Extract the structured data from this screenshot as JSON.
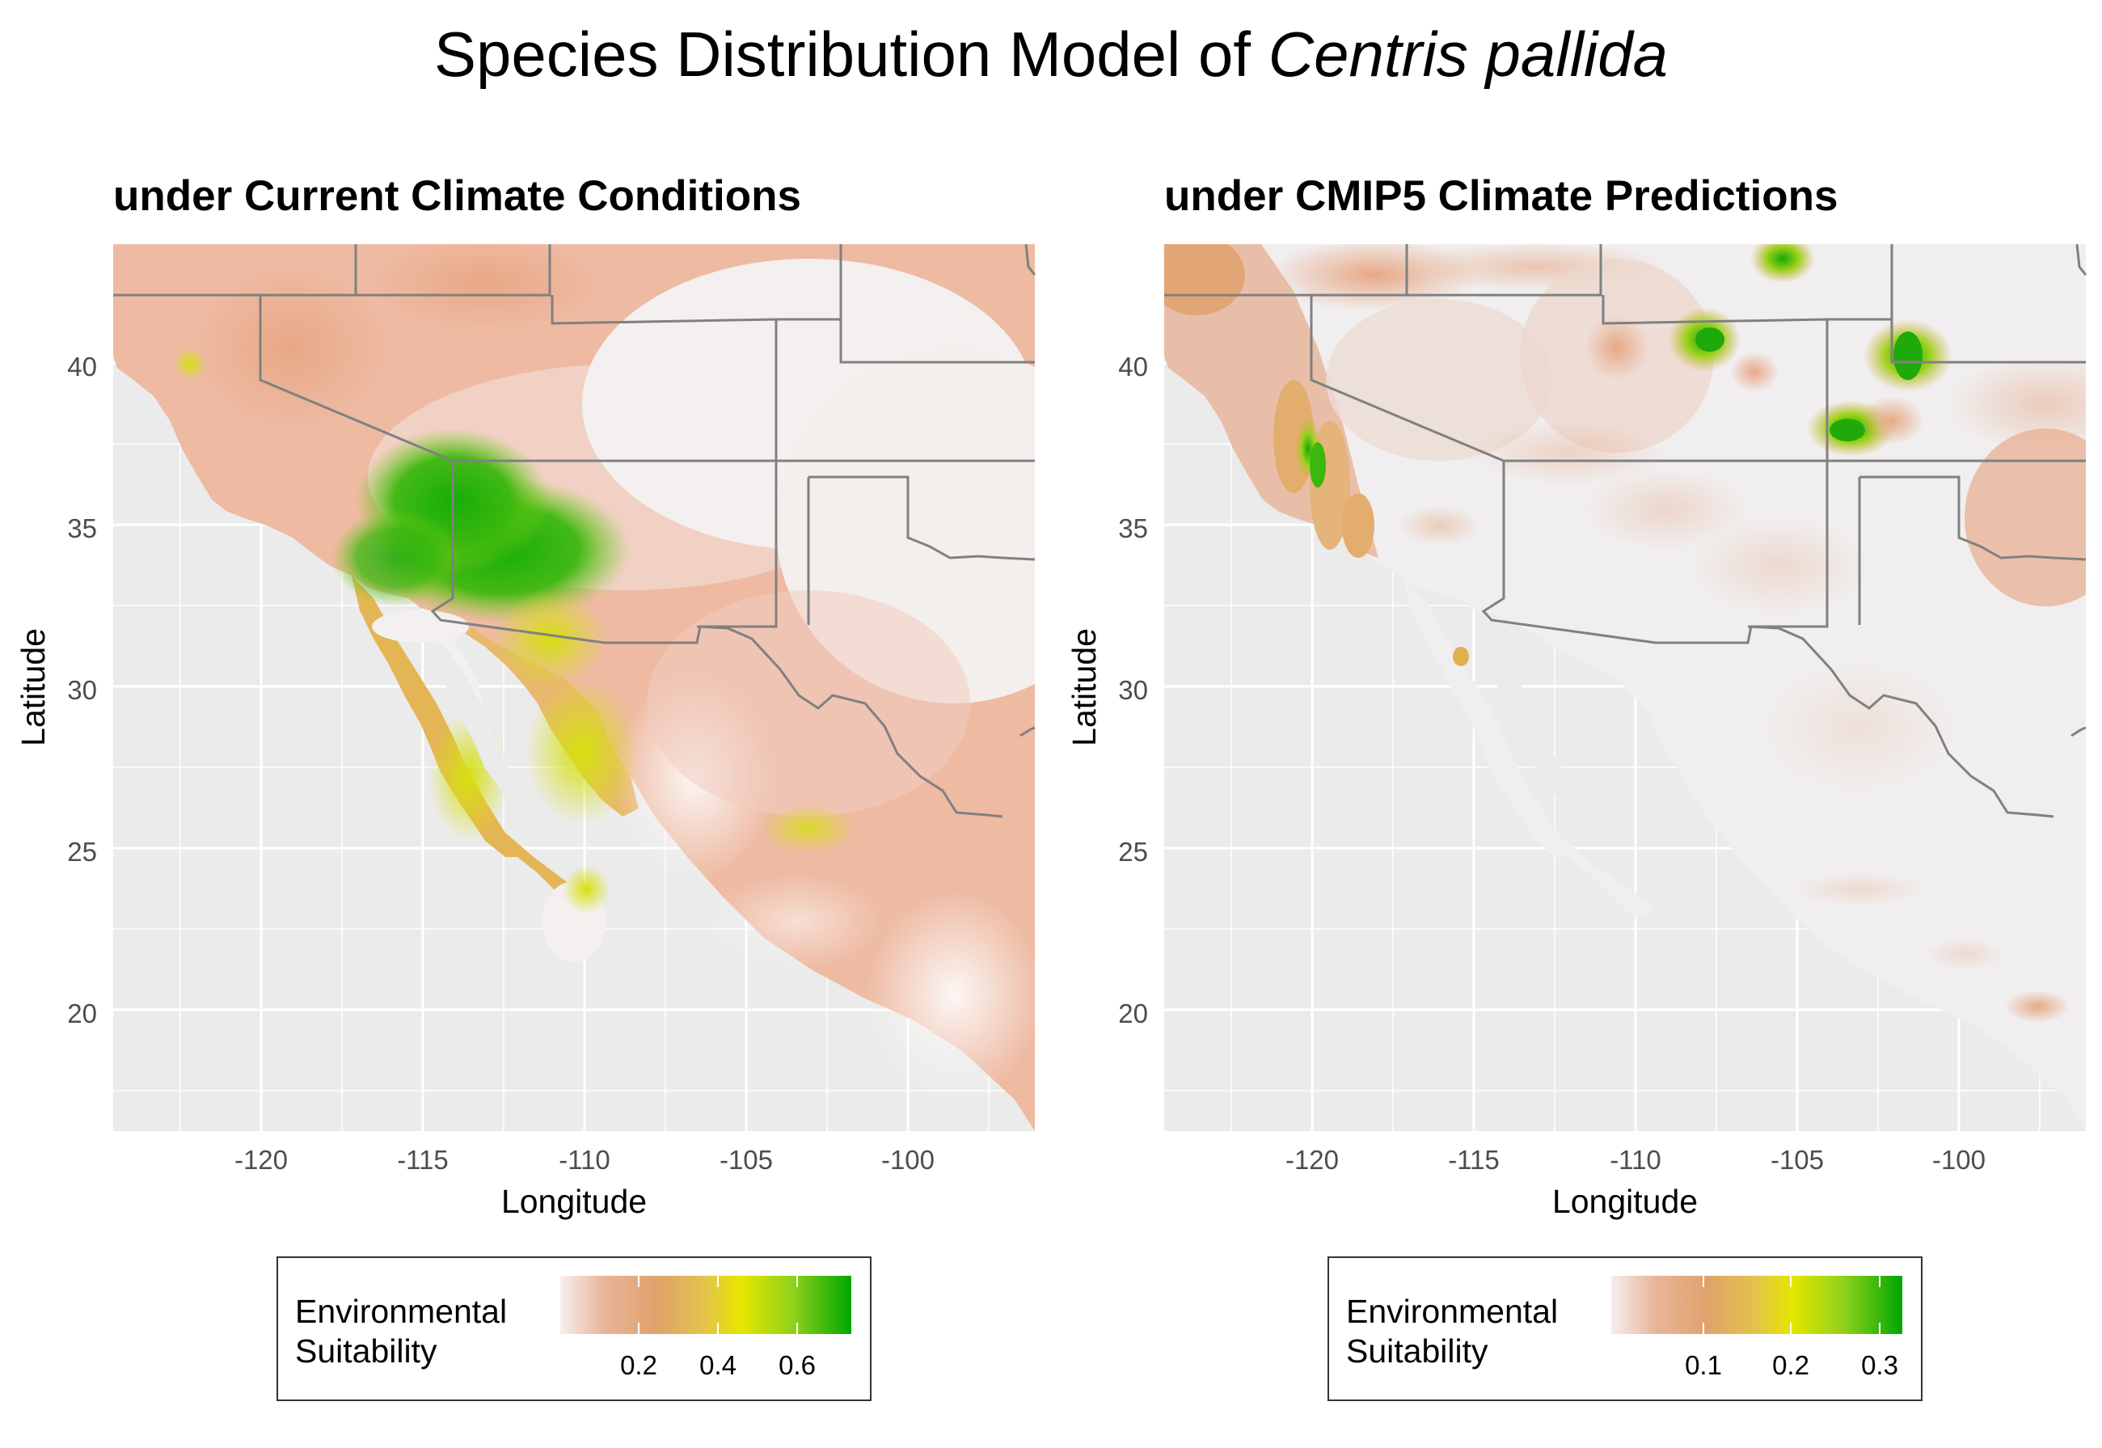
{
  "title": {
    "prefix": "Species Distribution Model of ",
    "species": "Centris pallida"
  },
  "colors": {
    "panel_bg": "#ebebeb",
    "grid": "#ffffff",
    "border": "#808080",
    "gradient": [
      "#f6eeee",
      "#e9b59a",
      "#e0a26c",
      "#e3c44a",
      "#e6e600",
      "#8fd11b",
      "#00a600"
    ]
  },
  "panels": [
    {
      "subtitle": "under Current Climate Conditions",
      "xlabel": "Longitude",
      "ylabel": "Latitude",
      "xticks": [
        "-120",
        "-115",
        "-110",
        "-105",
        "-100"
      ],
      "yticks": [
        "20",
        "25",
        "30",
        "35",
        "40"
      ],
      "legend": {
        "title_line1": "Environmental",
        "title_line2": "Suitability",
        "ticks": [
          "0.2",
          "0.4",
          "0.6"
        ]
      }
    },
    {
      "subtitle": "under CMIP5 Climate Predictions",
      "xlabel": "Longitude",
      "ylabel": "Latitude",
      "xticks": [
        "-120",
        "-115",
        "-110",
        "-105",
        "-100"
      ],
      "yticks": [
        "20",
        "25",
        "30",
        "35",
        "40"
      ],
      "legend": {
        "title_line1": "Environmental",
        "title_line2": "Suitability",
        "ticks": [
          "0.1",
          "0.2",
          "0.3"
        ]
      }
    }
  ]
}
